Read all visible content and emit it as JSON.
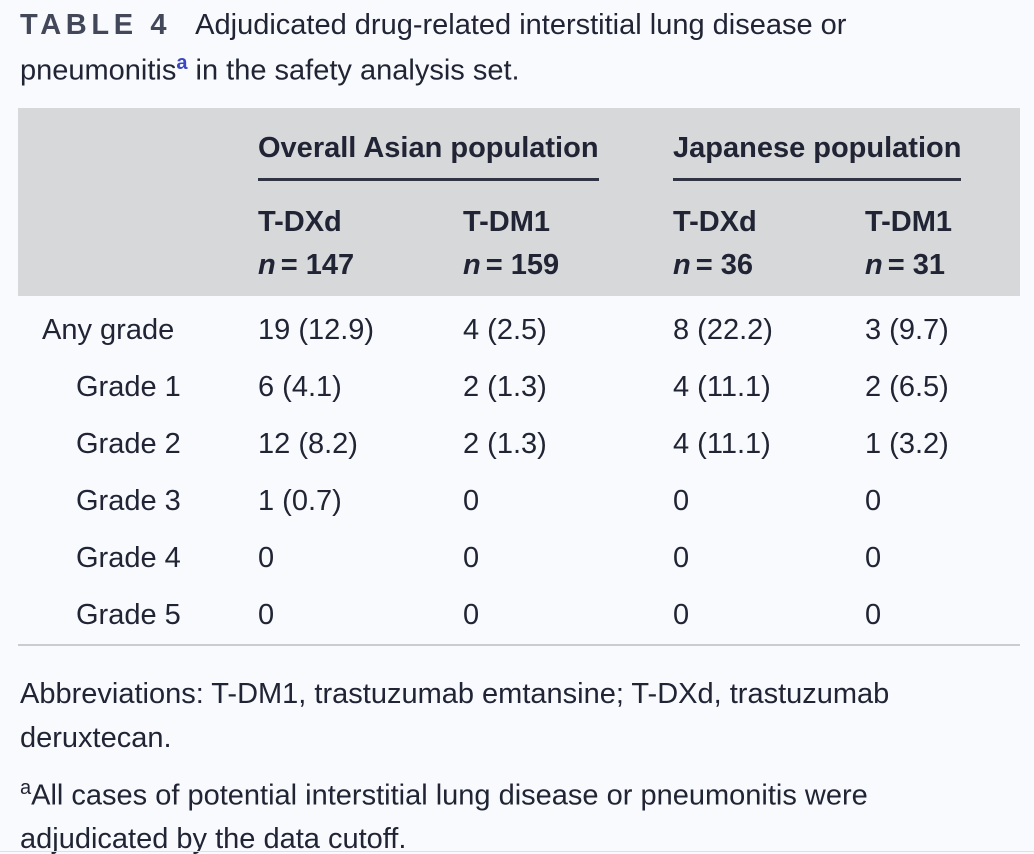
{
  "title": {
    "label": "TABLE 4",
    "line1": "Adjudicated drug-related interstitial lung disease or",
    "line2_pre": "pneumonitis",
    "sup": "a",
    "line2_post": " in the safety analysis set."
  },
  "table": {
    "groups": [
      {
        "label": "Overall Asian population"
      },
      {
        "label": "Japanese population"
      }
    ],
    "columns": [
      {
        "drug": "T-DXd",
        "n_var": "n",
        "n_rest": "= 147"
      },
      {
        "drug": "T-DM1",
        "n_var": "n",
        "n_rest": "= 159"
      },
      {
        "drug": "T-DXd",
        "n_var": "n",
        "n_rest": "= 36"
      },
      {
        "drug": "T-DM1",
        "n_var": "n",
        "n_rest": "= 31"
      }
    ],
    "rows": [
      {
        "label": "Any grade",
        "values": [
          "19 (12.9)",
          "4 (2.5)",
          "8 (22.2)",
          "3 (9.7)"
        ]
      },
      {
        "label": "Grade 1",
        "values": [
          "6 (4.1)",
          "2 (1.3)",
          "4 (11.1)",
          "2 (6.5)"
        ]
      },
      {
        "label": "Grade 2",
        "values": [
          "12 (8.2)",
          "2 (1.3)",
          "4 (11.1)",
          "1 (3.2)"
        ]
      },
      {
        "label": "Grade 3",
        "values": [
          "1 (0.7)",
          "0",
          "0",
          "0"
        ]
      },
      {
        "label": "Grade 4",
        "values": [
          "0",
          "0",
          "0",
          "0"
        ]
      },
      {
        "label": "Grade 5",
        "values": [
          "0",
          "0",
          "0",
          "0"
        ]
      }
    ]
  },
  "footer": {
    "abbreviations": "Abbreviations: T-DM1, trastuzumab emtansine; T-DXd, trastuzumab deruxtecan.",
    "footnote_sup": "a",
    "footnote_text": "All cases of potential interstitial lung disease or pneumonitis were adjudicated by the data cutoff."
  },
  "colors": {
    "page_background": "#f8fafd",
    "header_band": "#d7d8da",
    "text": "#212434",
    "table_label": "#42475a",
    "footnote_marker_blue": "#3a46c3",
    "dark_rule": "#303341",
    "light_rule": "#c9ccd1"
  }
}
